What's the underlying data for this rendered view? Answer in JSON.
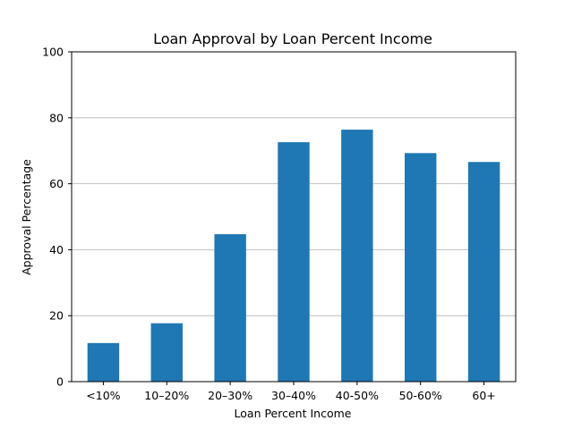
{
  "chart_data": {
    "type": "bar",
    "title": "Loan Approval by Loan Percent Income",
    "xlabel": "Loan Percent Income",
    "ylabel": "Approval Percentage",
    "categories": [
      "<10%",
      "10–20%",
      "20–30%",
      "30–40%",
      "40-50%",
      "50-60%",
      "60+"
    ],
    "values": [
      11.7,
      17.7,
      44.7,
      72.6,
      76.4,
      69.3,
      66.6
    ],
    "ylim": [
      0,
      100
    ],
    "yticks": [
      "0",
      "20",
      "40",
      "60",
      "80",
      "100"
    ],
    "grid": "y",
    "bar_color": "#1f77b4"
  }
}
